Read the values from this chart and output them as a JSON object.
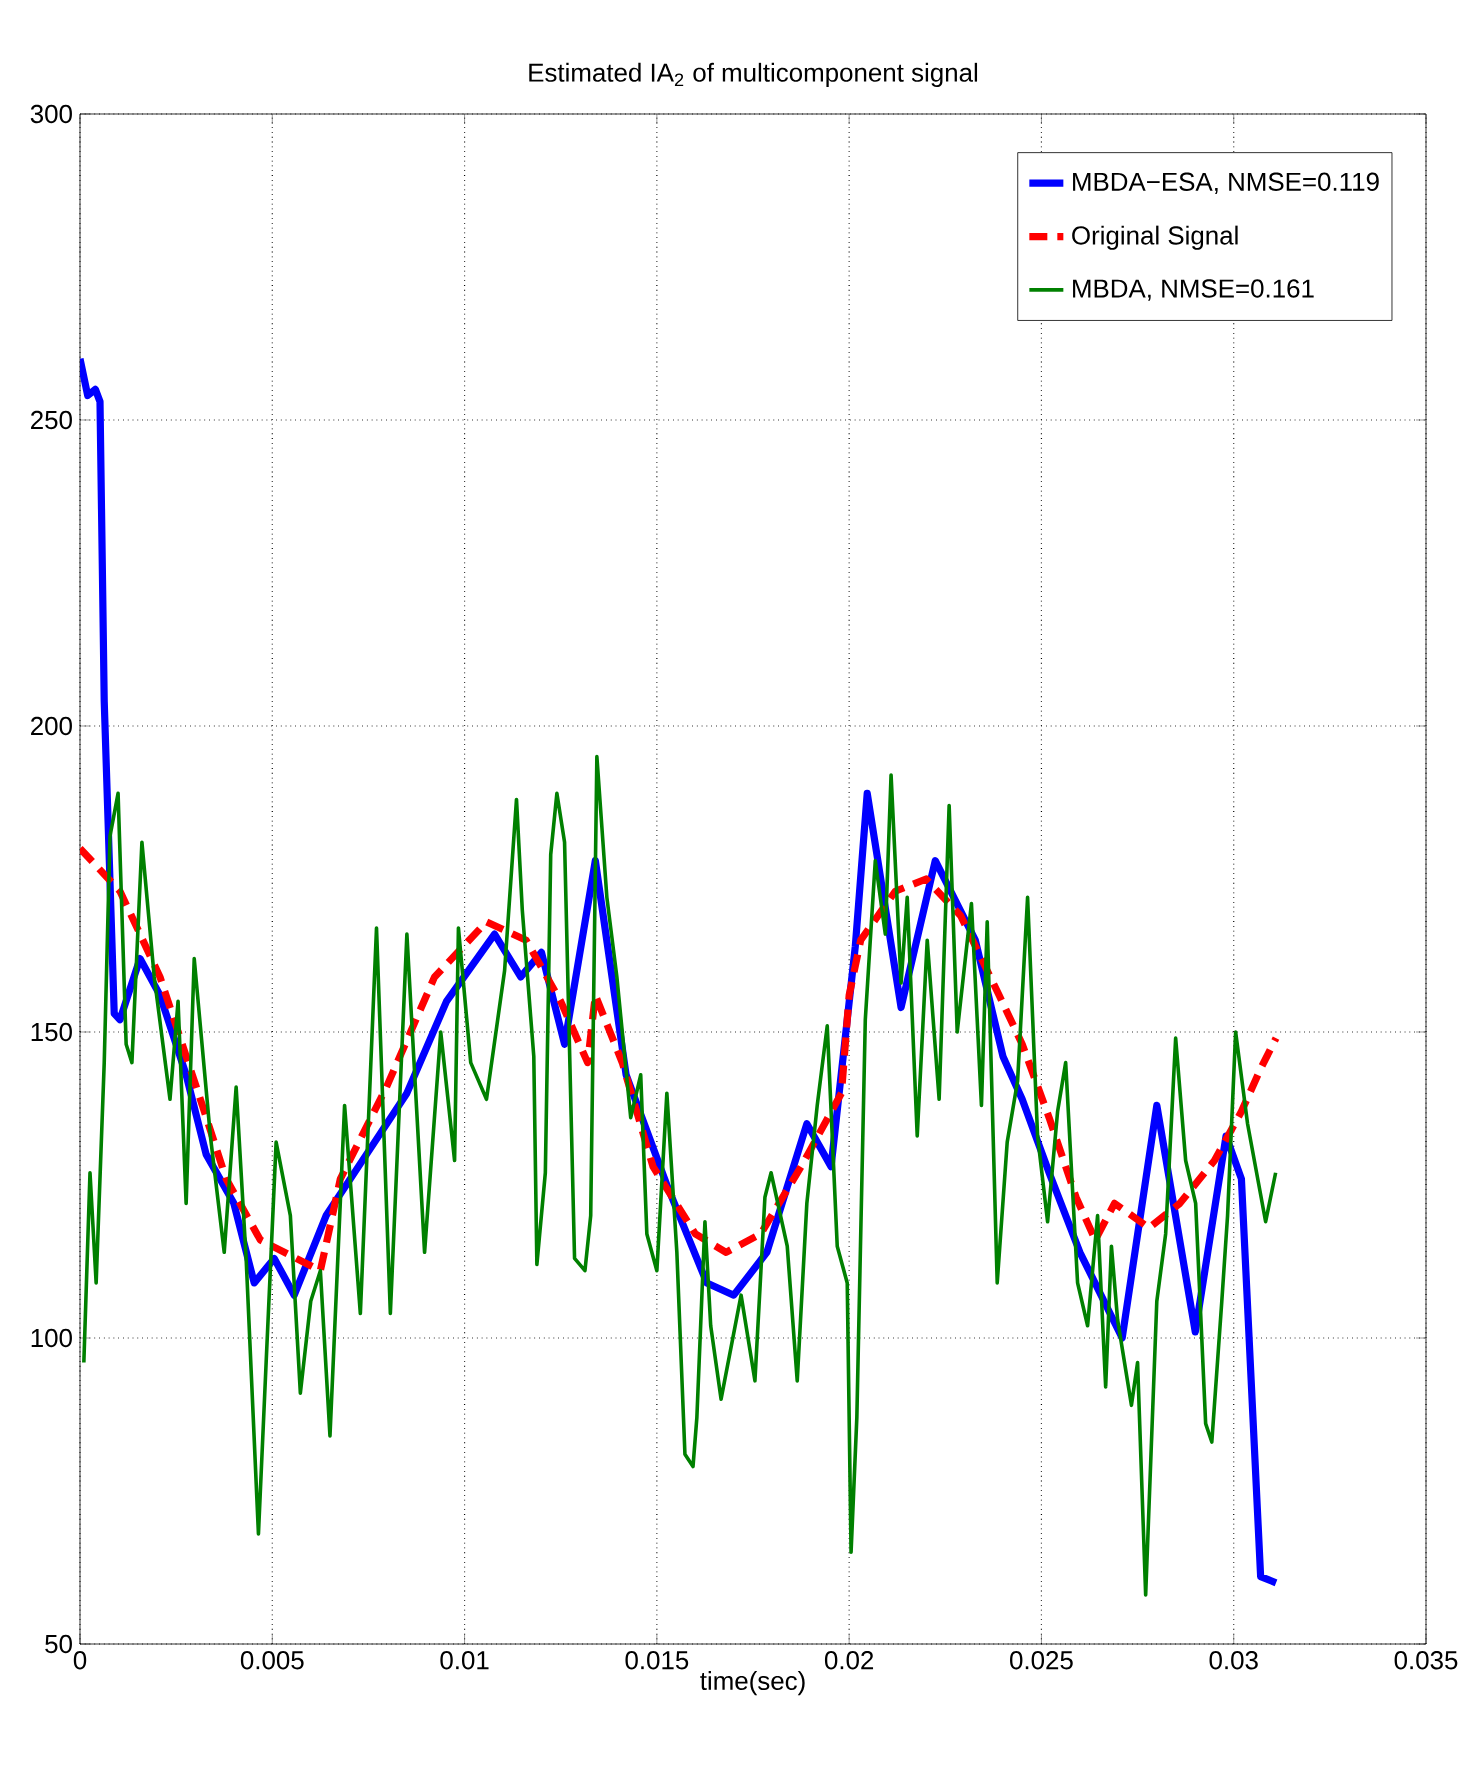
{
  "chart_data": {
    "type": "line",
    "title": "Estimated IA$_{2}$ of multicomponent signal",
    "xlabel": "time(sec)",
    "xlim": [
      0,
      0.035
    ],
    "ylim": [
      50,
      300
    ],
    "xticks": [
      0,
      0.005,
      0.01,
      0.015,
      0.02,
      0.025,
      0.03,
      0.035
    ],
    "yticks": [
      50,
      100,
      150,
      200,
      250,
      300
    ],
    "grid": true,
    "legend": "top right",
    "series": [
      {
        "name": "MBDA−ESA, NMSE=0.119",
        "color": "#0000ff",
        "line_style": "solid",
        "x": [
          0,
          0.0002,
          0.0004,
          0.00052,
          0.00063,
          0.00089,
          0.00104,
          0.00156,
          0.00208,
          0.00276,
          0.00328,
          0.004,
          0.00453,
          0.00505,
          0.00557,
          0.0064,
          0.00745,
          0.0085,
          0.00953,
          0.01078,
          0.01146,
          0.012,
          0.0126,
          0.0134,
          0.0142,
          0.01526,
          0.0163,
          0.017,
          0.01786,
          0.0189,
          0.01953,
          0.02016,
          0.02047,
          0.02135,
          0.02224,
          0.02328,
          0.024,
          0.0245,
          0.0252,
          0.026,
          0.0271,
          0.028,
          0.029,
          0.0298,
          0.0302,
          0.0307,
          0.0311
        ],
        "values": [
          260,
          254,
          255,
          253,
          204,
          153,
          152,
          162,
          156,
          143,
          130,
          122,
          109,
          113,
          107,
          120,
          130,
          140,
          155,
          166,
          159,
          163,
          148,
          178,
          143,
          125,
          109,
          107,
          114,
          135,
          128,
          164,
          189,
          154,
          178,
          165,
          146,
          139,
          127,
          114,
          100,
          138,
          101,
          133,
          126,
          61,
          60
        ]
      },
      {
        "name": "Original Signal",
        "color": "#ff0000",
        "line_style": "dashed",
        "x": [
          0,
          0.00104,
          0.00208,
          0.00313,
          0.0038,
          0.00469,
          0.00625,
          0.00677,
          0.00797,
          0.00922,
          0.01057,
          0.0116,
          0.0125,
          0.0132,
          0.0134,
          0.0141,
          0.0149,
          0.016,
          0.0168,
          0.0177,
          0.01875,
          0.0198,
          0.02,
          0.0203,
          0.0212,
          0.022,
          0.0229,
          0.0239,
          0.0245,
          0.0252,
          0.0259,
          0.0264,
          0.0269,
          0.0278,
          0.0286,
          0.0295,
          0.0302,
          0.0307,
          0.0311
        ],
        "values": [
          180,
          173,
          159,
          139,
          126,
          116,
          111,
          126,
          141,
          159,
          168,
          165,
          155,
          145,
          156,
          145,
          128,
          117,
          114,
          117,
          128,
          140,
          156,
          165,
          173,
          175,
          169,
          156,
          148,
          136,
          123,
          116,
          122,
          118,
          122,
          129,
          137,
          144,
          149
        ]
      },
      {
        "name": "MBDA, NMSE=0.161",
        "color": "#008000",
        "line_style": "solid",
        "x": [
          0.0001,
          0.00026,
          0.00042,
          0.00063,
          0.00078,
          0.00099,
          0.0012,
          0.00135,
          0.00161,
          0.00193,
          0.00234,
          0.00255,
          0.00276,
          0.00297,
          0.00339,
          0.00375,
          0.00406,
          0.00432,
          0.00464,
          0.00484,
          0.0051,
          0.00547,
          0.00573,
          0.006,
          0.00625,
          0.0065,
          0.00688,
          0.00729,
          0.00771,
          0.00807,
          0.0085,
          0.00896,
          0.00938,
          0.00974,
          0.00984,
          0.01016,
          0.01057,
          0.01104,
          0.01135,
          0.0115,
          0.0118,
          0.01188,
          0.0121,
          0.01224,
          0.0124,
          0.0126,
          0.01286,
          0.01313,
          0.01328,
          0.01344,
          0.0137,
          0.01396,
          0.01432,
          0.01458,
          0.01474,
          0.015,
          0.01526,
          0.01552,
          0.01573,
          0.01594,
          0.01604,
          0.01625,
          0.0164,
          0.01667,
          0.01719,
          0.01755,
          0.01781,
          0.01797,
          0.01839,
          0.01865,
          0.0189,
          0.01917,
          0.01943,
          0.01969,
          0.01995,
          0.02005,
          0.0202,
          0.02042,
          0.02068,
          0.02094,
          0.02109,
          0.02135,
          0.02151,
          0.02177,
          0.02203,
          0.02234,
          0.0226,
          0.02281,
          0.02318,
          0.02344,
          0.02359,
          0.02385,
          0.02411,
          0.02438,
          0.02464,
          0.0249,
          0.02516,
          0.02542,
          0.02563,
          0.02594,
          0.0262,
          0.02646,
          0.02667,
          0.02682,
          0.02698,
          0.02734,
          0.0275,
          0.02771,
          0.028,
          0.02823,
          0.02849,
          0.02875,
          0.02901,
          0.02927,
          0.02943,
          0.02969,
          0.02984,
          0.03005,
          0.03036,
          0.03083,
          0.03109
        ],
        "values": [
          96,
          127,
          109,
          145,
          182,
          189,
          148,
          145,
          181,
          159,
          139,
          155,
          122,
          162,
          133,
          114,
          141,
          113,
          68,
          96,
          132,
          120,
          91,
          106,
          111,
          84,
          138,
          104,
          167,
          104,
          166,
          114,
          150,
          129,
          167,
          145,
          139,
          160,
          188,
          170,
          146,
          112,
          127,
          179,
          189,
          181,
          113,
          111,
          120,
          195,
          172,
          159,
          136,
          143,
          117,
          111,
          140,
          114,
          81,
          79,
          87,
          119,
          102,
          90,
          107,
          93,
          123,
          127,
          115,
          93,
          122,
          138,
          151,
          115,
          109,
          65,
          87,
          152,
          178,
          166,
          192,
          158,
          172,
          133,
          165,
          139,
          187,
          150,
          171,
          138,
          168,
          109,
          132,
          142,
          172,
          133,
          119,
          137,
          145,
          109,
          102,
          120,
          92,
          115,
          103,
          89,
          96,
          58,
          106,
          117,
          149,
          129,
          122,
          86,
          83,
          106,
          120,
          150,
          135,
          119,
          127
        ]
      }
    ]
  }
}
